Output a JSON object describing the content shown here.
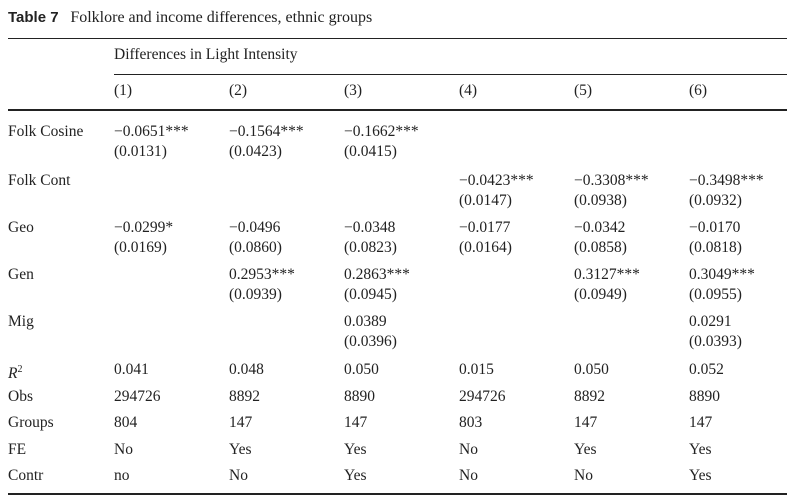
{
  "table": {
    "label": "Table 7",
    "title": "Folklore and income differences, ethnic groups",
    "group_header": "Differences in Light Intensity",
    "columns": [
      "(1)",
      "(2)",
      "(3)",
      "(4)",
      "(5)",
      "(6)"
    ],
    "rows": [
      {
        "label": "Folk Cosine",
        "cells": [
          [
            "−0.0651***",
            "(0.0131)"
          ],
          [
            "−0.1564***",
            "(0.0423)"
          ],
          [
            "−0.1662***",
            "(0.0415)"
          ],
          [
            "",
            ""
          ],
          [
            "",
            ""
          ],
          [
            "",
            ""
          ]
        ]
      },
      {
        "label": "Folk Cont",
        "cells": [
          [
            "",
            ""
          ],
          [
            "",
            ""
          ],
          [
            "",
            ""
          ],
          [
            "−0.0423***",
            "(0.0147)"
          ],
          [
            "−0.3308***",
            "(0.0938)"
          ],
          [
            "−0.3498***",
            "(0.0932)"
          ]
        ]
      },
      {
        "label": "Geo",
        "cells": [
          [
            "−0.0299*",
            "(0.0169)"
          ],
          [
            "−0.0496",
            "(0.0860)"
          ],
          [
            "−0.0348",
            "(0.0823)"
          ],
          [
            "−0.0177",
            "(0.0164)"
          ],
          [
            "−0.0342",
            "(0.0858)"
          ],
          [
            "−0.0170",
            "(0.0818)"
          ]
        ]
      },
      {
        "label": "Gen",
        "cells": [
          [
            "",
            ""
          ],
          [
            "0.2953***",
            "(0.0939)"
          ],
          [
            "0.2863***",
            "(0.0945)"
          ],
          [
            "",
            ""
          ],
          [
            "0.3127***",
            "(0.0949)"
          ],
          [
            "0.3049***",
            "(0.0955)"
          ]
        ]
      },
      {
        "label": "Mig",
        "cells": [
          [
            "",
            ""
          ],
          [
            "",
            ""
          ],
          [
            "0.0389",
            "(0.0396)"
          ],
          [
            "",
            ""
          ],
          [
            "",
            ""
          ],
          [
            "0.0291",
            "(0.0393)"
          ]
        ]
      }
    ],
    "r2": {
      "label_base": "R",
      "label_sup": "2",
      "values": [
        "0.041",
        "0.048",
        "0.050",
        "0.015",
        "0.050",
        "0.052"
      ]
    },
    "stats": [
      {
        "label": "Obs",
        "values": [
          "294726",
          "8892",
          "8890",
          "294726",
          "8892",
          "8890"
        ]
      },
      {
        "label": "Groups",
        "values": [
          "804",
          "147",
          "147",
          "803",
          "147",
          "147"
        ]
      },
      {
        "label": "FE",
        "values": [
          "No",
          "Yes",
          "Yes",
          "No",
          "Yes",
          "Yes"
        ]
      },
      {
        "label": "Contr",
        "values": [
          "no",
          "No",
          "Yes",
          "No",
          "No",
          "Yes"
        ]
      }
    ]
  }
}
